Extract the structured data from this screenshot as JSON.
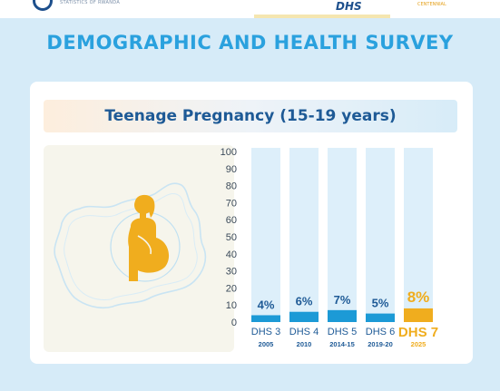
{
  "header": {
    "org_text": "STATISTICS OF RWANDA",
    "dhs_logo": "DHS",
    "dhs_side": "CENTENNIAL"
  },
  "title": "DEMOGRAPHIC AND HEALTH SURVEY",
  "subtitle": "Teenage Pregnancy (15-19 years)",
  "colors": {
    "title": "#2aa1de",
    "subtitle": "#1e5a96",
    "bar_blue": "#1c9ad6",
    "bar_highlight": "#f0ad1e",
    "bar_track": "#ddeffa",
    "figure": "#f0ad1e",
    "map_outline": "#c9e4f3"
  },
  "icons": [
    "pregnant-woman-icon",
    "rwanda-map-outline"
  ],
  "chart_data": {
    "type": "bar",
    "categories": [
      "DHS 3",
      "DHS 4",
      "DHS 5",
      "DHS 6",
      "DHS 7"
    ],
    "years": [
      "2005",
      "2010",
      "2014-15",
      "2019-20",
      "2025"
    ],
    "values": [
      4,
      6,
      7,
      5,
      8
    ],
    "data_labels": [
      "4%",
      "6%",
      "7%",
      "5%",
      "8%"
    ],
    "highlight_index": 4,
    "ylim": [
      0,
      100
    ],
    "yticks": [
      0,
      10,
      20,
      30,
      40,
      50,
      60,
      70,
      80,
      90,
      100
    ],
    "ytick_labels": [
      "0",
      "10",
      "20",
      "30",
      "40",
      "50",
      "60",
      "70",
      "80",
      "90",
      "100"
    ],
    "grid": false,
    "legend": "none"
  }
}
